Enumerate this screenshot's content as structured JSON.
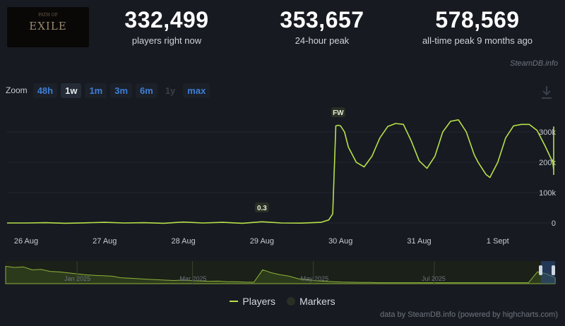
{
  "logo": {
    "text": "EXILE",
    "sub": "PATH OF"
  },
  "stats": [
    {
      "value": "332,499",
      "label": "players right now"
    },
    {
      "value": "353,657",
      "label": "24-hour peak"
    },
    {
      "value": "578,569",
      "label": "all-time peak 9 months ago"
    }
  ],
  "credit_top": "SteamDB.info",
  "zoom": {
    "label": "Zoom",
    "buttons": [
      "48h",
      "1w",
      "1m",
      "3m",
      "6m",
      "1y",
      "max"
    ],
    "active": "1w",
    "disabled": [
      "1y"
    ]
  },
  "legend": {
    "players": "Players",
    "markers": "Markers"
  },
  "credit_bottom": "data by SteamDB.info (powered by highcharts.com)",
  "colors": {
    "line": "#b7e04a",
    "background": "#171a21",
    "accent": "#3d7fd6"
  },
  "chart_data": {
    "type": "line",
    "series": [
      {
        "name": "Players",
        "x": [
          0,
          0.25,
          0.5,
          0.75,
          1,
          1.25,
          1.5,
          1.75,
          2,
          2.25,
          2.5,
          2.75,
          3,
          3.25,
          3.5,
          3.75,
          3.85,
          3.9,
          3.94,
          3.97,
          4,
          4.05,
          4.1,
          4.2,
          4.3,
          4.4,
          4.5,
          4.6,
          4.7,
          4.8,
          4.9,
          5,
          5.1,
          5.2,
          5.3,
          5.4,
          5.5,
          5.6,
          5.7,
          5.75,
          5.8,
          5.85,
          5.9,
          6,
          6.1,
          6.2,
          6.3,
          6.4,
          6.5,
          6.6,
          6.7,
          6.75,
          6.8,
          6.9,
          7
        ],
        "values": [
          0,
          1000,
          -1000,
          500,
          2000,
          0,
          1000,
          -1000,
          3000,
          0,
          2000,
          -1000,
          4000,
          0,
          -500,
          2000,
          10000,
          30000,
          320000,
          322000,
          320000,
          300000,
          250000,
          200000,
          185000,
          220000,
          280000,
          318000,
          328000,
          325000,
          270000,
          205000,
          180000,
          220000,
          300000,
          335000,
          340000,
          300000,
          225000,
          200000,
          180000,
          160000,
          150000,
          200000,
          280000,
          320000,
          325000,
          325000,
          305000,
          255000,
          200000,
          175000,
          160000,
          220000,
          318000
        ]
      }
    ],
    "markers": [
      {
        "label": "0.3",
        "x": 3.0
      },
      {
        "label": "FW",
        "x": 3.97
      }
    ],
    "x_labels": [
      "26 Aug",
      "27 Aug",
      "28 Aug",
      "29 Aug",
      "30 Aug",
      "31 Aug",
      "1 Sept"
    ],
    "y_ticks": [
      0,
      100000,
      200000,
      300000
    ],
    "y_tick_labels": [
      "0",
      "100k",
      "200k",
      "300k"
    ],
    "ylim": [
      0,
      350000
    ],
    "navigator_labels": [
      "Jan 2025",
      "Mar 2025",
      "May 2025",
      "Jul 2025"
    ],
    "navigator": [
      0.88,
      0.82,
      0.85,
      0.7,
      0.72,
      0.62,
      0.6,
      0.55,
      0.5,
      0.45,
      0.42,
      0.4,
      0.38,
      0.3,
      0.28,
      0.25,
      0.22,
      0.2,
      0.18,
      0.16,
      0.18,
      0.15,
      0.14,
      0.12,
      0.13,
      0.1,
      0.1,
      0.08,
      0.07,
      0.7,
      0.55,
      0.45,
      0.38,
      0.25,
      0.2,
      0.15,
      0.12,
      0.1,
      0.08,
      0.07,
      0.06,
      0.06,
      0.05,
      0.05,
      0.05,
      0.05,
      0.05,
      0.05,
      0.05,
      0.05,
      0.05,
      0.05,
      0.05,
      0.05,
      0.05,
      0.05,
      0.05,
      0.05,
      0.05,
      0.05,
      0.6,
      0.5,
      0.3
    ]
  }
}
